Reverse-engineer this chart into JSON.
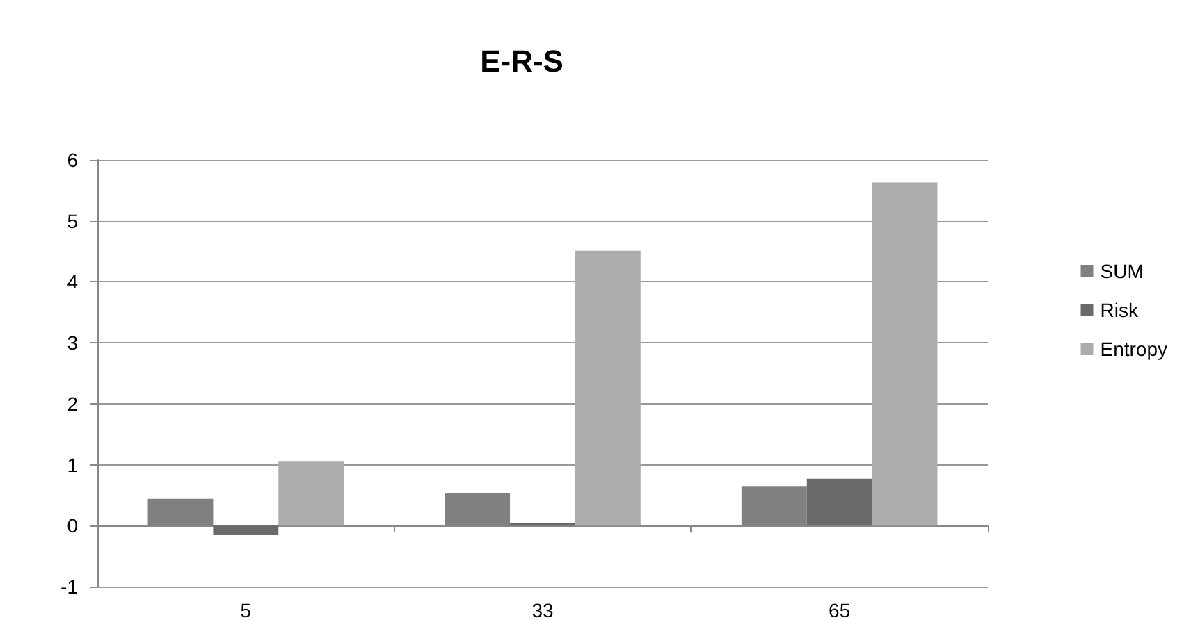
{
  "chart_data": {
    "type": "bar",
    "title": "E-R-S",
    "categories": [
      "5",
      "33",
      "65"
    ],
    "series": [
      {
        "name": "SUM",
        "color": "#808080",
        "values": [
          0.44,
          0.54,
          0.65
        ]
      },
      {
        "name": "Risk",
        "color": "#6a6a6a",
        "values": [
          -0.15,
          0.04,
          0.77
        ]
      },
      {
        "name": "Entropy",
        "color": "#acacac",
        "values": [
          1.06,
          4.51,
          5.63
        ]
      }
    ],
    "ylim": [
      -1,
      6
    ],
    "yticks": [
      -1,
      0,
      1,
      2,
      3,
      4,
      5,
      6
    ],
    "grid": "y",
    "legend": "right"
  }
}
